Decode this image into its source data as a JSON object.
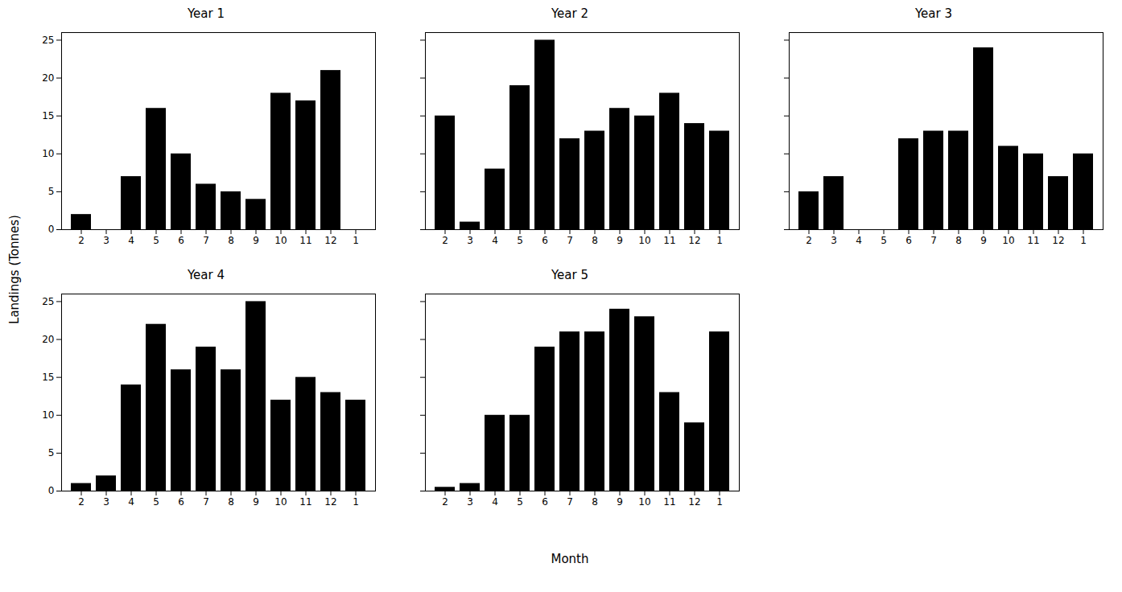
{
  "chart_data": [
    {
      "type": "bar",
      "title": "Year 1",
      "ylabel": "Landings (Tonnes)",
      "categories": [
        "2",
        "3",
        "4",
        "5",
        "6",
        "7",
        "8",
        "9",
        "10",
        "11",
        "12",
        "1"
      ],
      "values": [
        2,
        0,
        7,
        16,
        10,
        6,
        5,
        4,
        18,
        17,
        21,
        0
      ],
      "ylim": [
        0,
        26
      ],
      "yticks": [
        0,
        5,
        10,
        15,
        20,
        25
      ]
    },
    {
      "type": "bar",
      "title": "Year 2",
      "categories": [
        "2",
        "3",
        "4",
        "5",
        "6",
        "7",
        "8",
        "9",
        "10",
        "11",
        "12",
        "1"
      ],
      "values": [
        15,
        1,
        8,
        19,
        25,
        12,
        13,
        16,
        15,
        18,
        14,
        13
      ],
      "ylim": [
        0,
        26
      ],
      "yticks": [
        0,
        5,
        10,
        15,
        20,
        25
      ],
      "tick_labels": "x"
    },
    {
      "type": "bar",
      "title": "Year 3",
      "categories": [
        "2",
        "3",
        "4",
        "5",
        "6",
        "7",
        "8",
        "9",
        "10",
        "11",
        "12",
        "1"
      ],
      "values": [
        5,
        7,
        0,
        0,
        12,
        13,
        13,
        24,
        11,
        10,
        7,
        10
      ],
      "ylim": [
        0,
        26
      ],
      "yticks": [
        0,
        5,
        10,
        15,
        20,
        25
      ],
      "tick_labels": "x"
    },
    {
      "type": "bar",
      "title": "Year 4",
      "categories": [
        "2",
        "3",
        "4",
        "5",
        "6",
        "7",
        "8",
        "9",
        "10",
        "11",
        "12",
        "1"
      ],
      "values": [
        1,
        2,
        14,
        22,
        16,
        19,
        16,
        25,
        12,
        15,
        13,
        12
      ],
      "ylim": [
        0,
        26
      ],
      "yticks": [
        0,
        5,
        10,
        15,
        20,
        25
      ]
    },
    {
      "type": "bar",
      "title": "Year 5",
      "xlabel": "Month",
      "categories": [
        "2",
        "3",
        "4",
        "5",
        "6",
        "7",
        "8",
        "9",
        "10",
        "11",
        "12",
        "1"
      ],
      "values": [
        0.5,
        1,
        10,
        10,
        19,
        21,
        21,
        24,
        23,
        13,
        9,
        21
      ],
      "ylim": [
        0,
        26
      ],
      "yticks": [
        0,
        5,
        10,
        15,
        20,
        25
      ],
      "tick_labels": "x"
    }
  ]
}
